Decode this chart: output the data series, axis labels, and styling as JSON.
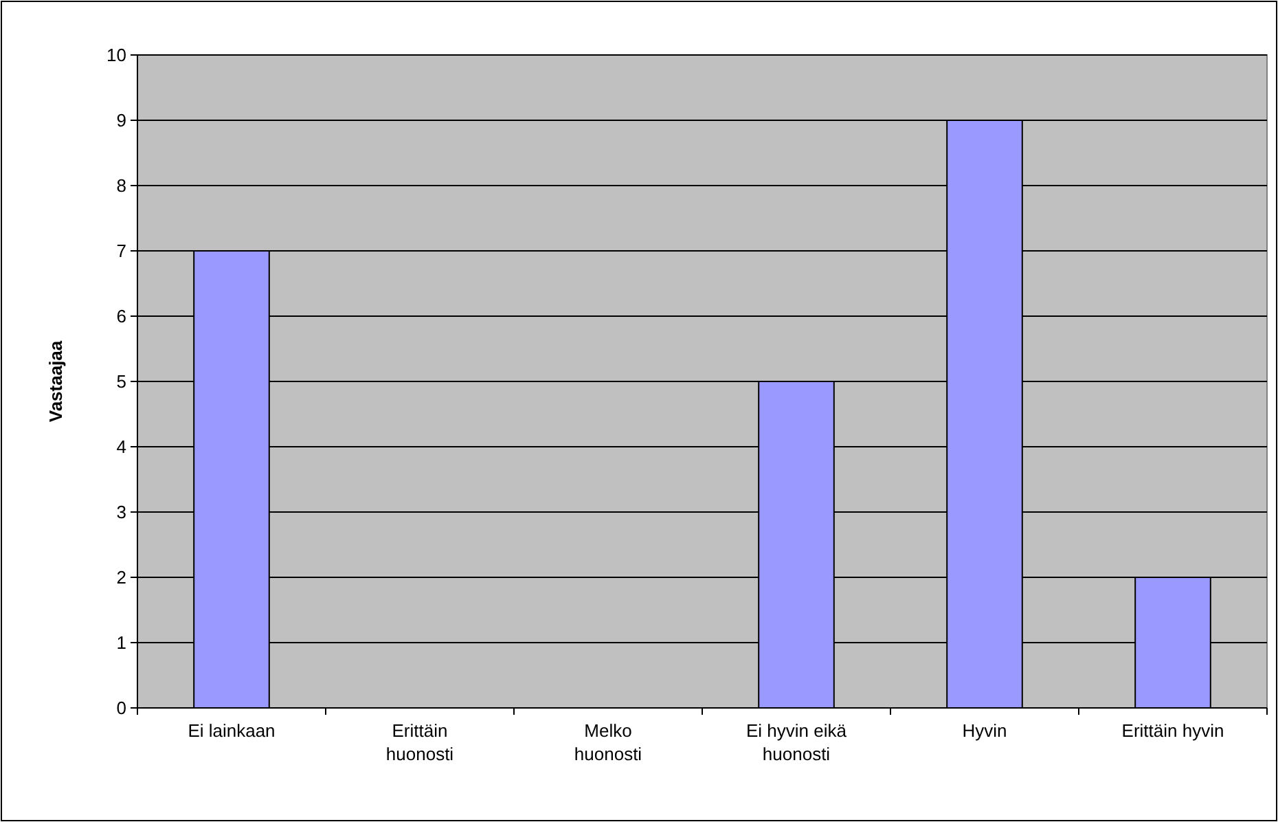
{
  "chart_data": {
    "type": "bar",
    "ylabel": "Vastaajaa",
    "categories": [
      "Ei lainkaan",
      "Erittäin huonosti",
      "Melko huonosti",
      "Ei hyvin eikä huonosti",
      "Hyvin",
      "Erittäin hyvin"
    ],
    "values": [
      7,
      0,
      0,
      5,
      9,
      2
    ],
    "color": "#9999ff",
    "ylim": [
      0,
      10
    ],
    "yticks": [
      0,
      1,
      2,
      3,
      4,
      5,
      6,
      7,
      8,
      9,
      10
    ],
    "grid": "y"
  }
}
